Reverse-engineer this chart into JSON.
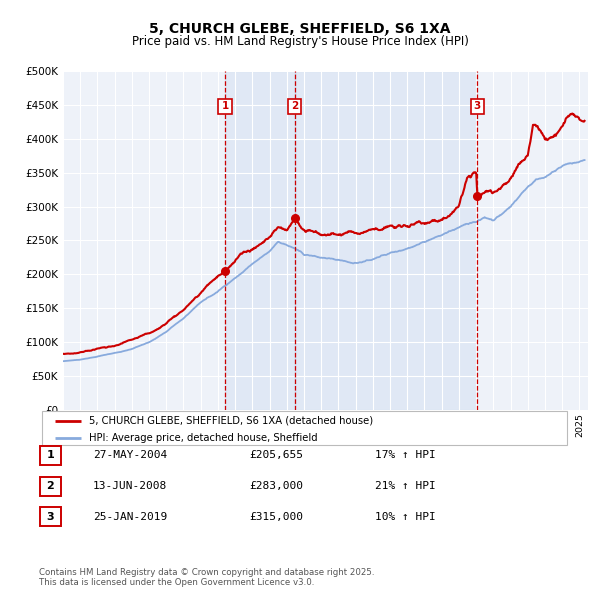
{
  "title": "5, CHURCH GLEBE, SHEFFIELD, S6 1XA",
  "subtitle": "Price paid vs. HM Land Registry's House Price Index (HPI)",
  "xlim": [
    1995,
    2025.5
  ],
  "ylim": [
    0,
    500000
  ],
  "yticks": [
    0,
    50000,
    100000,
    150000,
    200000,
    250000,
    300000,
    350000,
    400000,
    450000,
    500000
  ],
  "background_color": "#eef2f9",
  "red_line_color": "#cc0000",
  "blue_line_color": "#88aadd",
  "vline_color": "#cc0000",
  "sale1_t": 2004.41,
  "sale1_y": 205655,
  "sale2_t": 2008.45,
  "sale2_y": 283000,
  "sale3_t": 2019.07,
  "sale3_y": 315000,
  "legend_entries": [
    "5, CHURCH GLEBE, SHEFFIELD, S6 1XA (detached house)",
    "HPI: Average price, detached house, Sheffield"
  ],
  "table_rows": [
    {
      "num": "1",
      "date": "27-MAY-2004",
      "price": "£205,655",
      "hpi": "17% ↑ HPI"
    },
    {
      "num": "2",
      "date": "13-JUN-2008",
      "price": "£283,000",
      "hpi": "21% ↑ HPI"
    },
    {
      "num": "3",
      "date": "25-JAN-2019",
      "price": "£315,000",
      "hpi": "10% ↑ HPI"
    }
  ],
  "footnote": "Contains HM Land Registry data © Crown copyright and database right 2025.\nThis data is licensed under the Open Government Licence v3.0."
}
